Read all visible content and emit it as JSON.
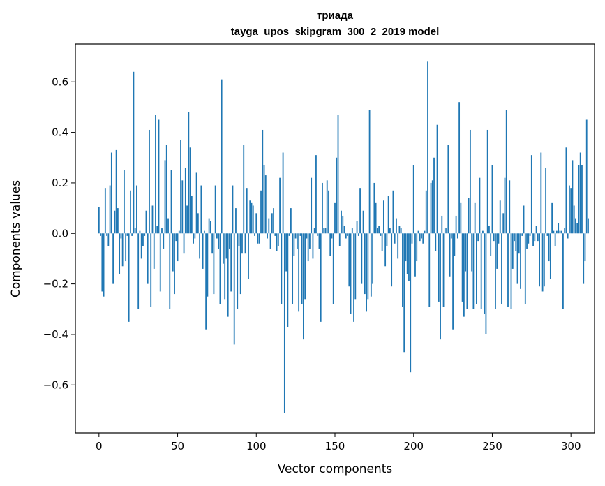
{
  "chart_data": {
    "type": "bar",
    "title": "триада",
    "subtitle": "tayga_upos_skipgram_300_2_2019 model",
    "xlabel": "Vector components",
    "ylabel": "Components values",
    "xlim": [
      -15,
      315
    ],
    "ylim": [
      -0.79,
      0.75
    ],
    "xticks": [
      0,
      50,
      100,
      150,
      200,
      250,
      300
    ],
    "yticks": [
      -0.6,
      -0.4,
      -0.2,
      0.0,
      0.2,
      0.4,
      0.6
    ],
    "xtick_labels": [
      "0",
      "50",
      "100",
      "150",
      "200",
      "250",
      "300"
    ],
    "ytick_labels": [
      "−0.6",
      "−0.4",
      "−0.2",
      "0.0",
      "0.2",
      "0.4",
      "0.6"
    ],
    "grid": false,
    "bar_color": "#1f77b4",
    "x_start": 0,
    "values": [
      0.105,
      -0.01,
      -0.23,
      -0.25,
      0.18,
      -0.01,
      -0.05,
      0.19,
      0.32,
      -0.2,
      0.09,
      0.33,
      0.1,
      -0.16,
      -0.02,
      -0.13,
      0.25,
      -0.11,
      -0.01,
      -0.35,
      0.17,
      -0.01,
      0.64,
      0.02,
      0.19,
      -0.3,
      0.01,
      -0.1,
      -0.05,
      -0.01,
      0.09,
      -0.2,
      0.41,
      -0.29,
      0.11,
      -0.14,
      0.47,
      0.03,
      0.45,
      -0.23,
      0.02,
      -0.06,
      0.29,
      0.35,
      0.06,
      -0.3,
      0.25,
      -0.15,
      -0.24,
      -0.03,
      -0.11,
      0.01,
      0.37,
      0.21,
      -0.08,
      0.26,
      0.11,
      0.48,
      0.34,
      0.15,
      -0.04,
      -0.02,
      0.24,
      0.08,
      -0.1,
      0.19,
      -0.14,
      0.01,
      -0.38,
      -0.25,
      0.06,
      0.05,
      -0.08,
      -0.24,
      0.19,
      -0.02,
      -0.06,
      -0.28,
      0.61,
      -0.12,
      -0.26,
      -0.1,
      -0.33,
      -0.06,
      -0.23,
      0.19,
      -0.44,
      0.1,
      -0.3,
      -0.05,
      -0.24,
      -0.08,
      0.35,
      -0.08,
      0.18,
      -0.18,
      0.13,
      0.12,
      0.11,
      -0.01,
      0.08,
      -0.04,
      -0.04,
      0.17,
      0.41,
      0.27,
      0.23,
      -0.02,
      0.06,
      -0.06,
      0.08,
      0.1,
      -0.01,
      -0.07,
      -0.05,
      0.22,
      -0.28,
      0.32,
      -0.71,
      -0.15,
      -0.37,
      -0.01,
      0.1,
      -0.28,
      -0.09,
      -0.02,
      -0.06,
      -0.31,
      -0.01,
      -0.28,
      -0.42,
      -0.26,
      -0.02,
      -0.11,
      -0.06,
      0.22,
      -0.1,
      0.02,
      0.31,
      -0.01,
      -0.06,
      -0.35,
      0.2,
      0.02,
      0.02,
      0.21,
      0.17,
      -0.09,
      -0.02,
      -0.28,
      0.12,
      0.3,
      0.47,
      -0.05,
      0.09,
      0.07,
      0.03,
      -0.02,
      -0.01,
      -0.21,
      -0.32,
      0.02,
      -0.35,
      -0.26,
      0.05,
      -0.01,
      0.18,
      -0.2,
      0.09,
      -0.24,
      -0.31,
      -0.26,
      0.49,
      -0.25,
      -0.2,
      0.2,
      0.12,
      0.02,
      0.03,
      -0.01,
      -0.07,
      0.13,
      -0.13,
      -0.05,
      0.15,
      0.02,
      -0.21,
      0.17,
      -0.04,
      0.06,
      -0.1,
      0.03,
      0.02,
      -0.29,
      -0.47,
      -0.11,
      -0.16,
      -0.19,
      -0.55,
      -0.04,
      0.27,
      -0.17,
      -0.11,
      0.01,
      -0.03,
      -0.02,
      -0.04,
      0.01,
      0.17,
      0.68,
      -0.29,
      0.2,
      0.21,
      0.3,
      -0.07,
      0.43,
      -0.27,
      -0.42,
      0.07,
      -0.29,
      0.02,
      0.02,
      0.35,
      -0.17,
      -0.02,
      -0.38,
      -0.09,
      0.07,
      -0.02,
      0.52,
      0.12,
      -0.27,
      -0.33,
      -0.15,
      -0.3,
      0.14,
      0.41,
      -0.15,
      -0.3,
      0.12,
      -0.28,
      -0.03,
      0.22,
      -0.3,
      0.01,
      -0.32,
      -0.4,
      0.41,
      0.03,
      -0.09,
      0.27,
      -0.03,
      -0.3,
      -0.14,
      -0.04,
      0.13,
      -0.28,
      0.08,
      0.22,
      0.49,
      -0.29,
      0.21,
      -0.3,
      -0.14,
      -0.03,
      -0.07,
      -0.2,
      -0.08,
      -0.22,
      -0.01,
      0.11,
      -0.28,
      -0.06,
      -0.04,
      -0.01,
      0.31,
      -0.05,
      -0.03,
      0.03,
      -0.03,
      -0.21,
      0.32,
      -0.23,
      -0.21,
      0.26,
      -0.01,
      -0.11,
      -0.18,
      0.12,
      0.01,
      -0.05,
      0.01,
      0.04,
      0.01,
      0.01,
      -0.3,
      0.02,
      0.34,
      -0.02,
      0.19,
      0.18,
      0.29,
      0.11,
      0.06,
      0.04,
      0.27,
      0.32,
      0.27,
      -0.2,
      -0.11,
      0.45,
      0.06
    ]
  }
}
